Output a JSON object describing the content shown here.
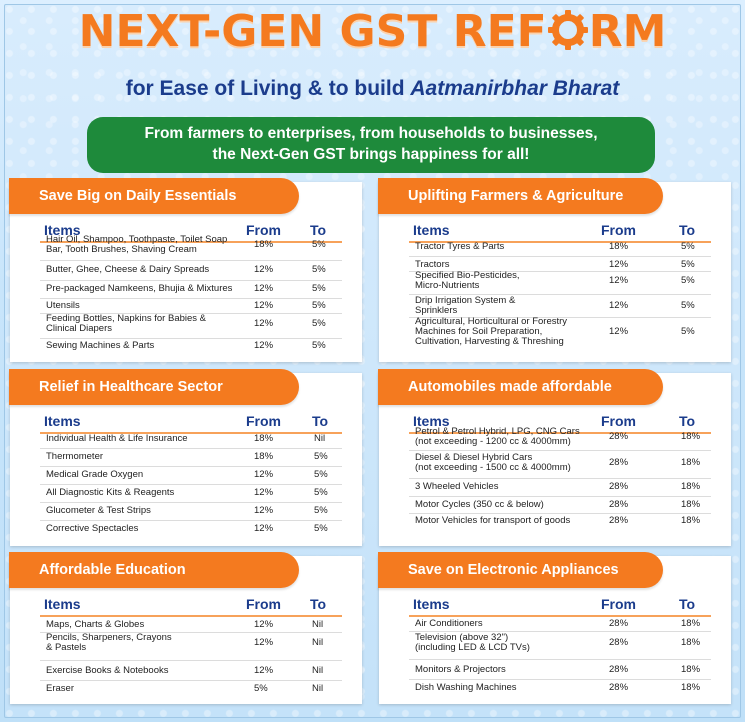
{
  "header": {
    "title_part1": "NEXT-GEN GST REF",
    "title_part2": "RM",
    "gear_icon": "gear-icon",
    "subtitle_main": "for Ease of Living & to build ",
    "subtitle_italic": "Aatmanirbhar Bharat"
  },
  "banner": {
    "line1": "From farmers to enterprises, from households to businesses,",
    "line2": "the Next-Gen GST brings happiness for all!"
  },
  "colors": {
    "orange": "#f47a1f",
    "navy": "#1b3c8c",
    "green": "#1e8a3b"
  },
  "columns": {
    "items": "Items",
    "from": "From",
    "to": "To"
  },
  "sections": [
    {
      "title": "Save Big on Daily Essentials",
      "rows": [
        {
          "item": [
            "Hair Oil, Shampoo, Toothpaste, Toilet Soap",
            "Bar, Tooth Brushes, Shaving Cream"
          ],
          "from": "18%",
          "to": "5%"
        },
        {
          "item": [
            "Butter, Ghee, Cheese & Dairy Spreads"
          ],
          "from": "12%",
          "to": "5%"
        },
        {
          "item": [
            "Pre-packaged Namkeens, Bhujia & Mixtures"
          ],
          "from": "12%",
          "to": "5%"
        },
        {
          "item": [
            "Utensils"
          ],
          "from": "12%",
          "to": "5%"
        },
        {
          "item": [
            "Feeding Bottles, Napkins for Babies &",
            "Clinical Diapers"
          ],
          "from": "12%",
          "to": "5%"
        },
        {
          "item": [
            "Sewing Machines & Parts"
          ],
          "from": "12%",
          "to": "5%"
        }
      ]
    },
    {
      "title": "Uplifting Farmers & Agriculture",
      "rows": [
        {
          "item": [
            "Tractor Tyres & Parts"
          ],
          "from": "18%",
          "to": "5%"
        },
        {
          "item": [
            "Tractors"
          ],
          "from": "12%",
          "to": "5%"
        },
        {
          "item": [
            "Specified Bio-Pesticides,",
            "Micro-Nutrients"
          ],
          "from": "12%",
          "to": "5%"
        },
        {
          "item": [
            "Drip Irrigation System &",
            "Sprinklers"
          ],
          "from": "12%",
          "to": "5%"
        },
        {
          "item": [
            "Agricultural, Horticultural or Forestry",
            "Machines for Soil Preparation,",
            "Cultivation, Harvesting & Threshing"
          ],
          "from": "12%",
          "to": "5%"
        }
      ]
    },
    {
      "title": "Relief in Healthcare Sector",
      "rows": [
        {
          "item": [
            "Individual Health & Life Insurance"
          ],
          "from": "18%",
          "to": "Nil"
        },
        {
          "item": [
            "Thermometer"
          ],
          "from": "18%",
          "to": "5%"
        },
        {
          "item": [
            "Medical Grade Oxygen"
          ],
          "from": "12%",
          "to": "5%"
        },
        {
          "item": [
            "All Diagnostic Kits & Reagents"
          ],
          "from": "12%",
          "to": "5%"
        },
        {
          "item": [
            "Glucometer & Test Strips"
          ],
          "from": "12%",
          "to": "5%"
        },
        {
          "item": [
            "Corrective Spectacles"
          ],
          "from": "12%",
          "to": "5%"
        }
      ]
    },
    {
      "title": "Automobiles made affordable",
      "rows": [
        {
          "item": [
            "Petrol & Petrol Hybrid, LPG, CNG Cars",
            "(not exceeding - 1200 cc & 4000mm)"
          ],
          "from": "28%",
          "to": "18%"
        },
        {
          "item": [
            "Diesel & Diesel Hybrid Cars",
            "(not exceeding - 1500 cc & 4000mm)"
          ],
          "from": "28%",
          "to": "18%"
        },
        {
          "item": [
            "3 Wheeled Vehicles"
          ],
          "from": "28%",
          "to": "18%"
        },
        {
          "item": [
            "Motor Cycles (350 cc & below)"
          ],
          "from": "28%",
          "to": "18%"
        },
        {
          "item": [
            "Motor Vehicles for transport of goods"
          ],
          "from": "28%",
          "to": "18%"
        }
      ]
    },
    {
      "title": "Affordable Education",
      "rows": [
        {
          "item": [
            "Maps, Charts & Globes"
          ],
          "from": "12%",
          "to": "Nil"
        },
        {
          "item": [
            "Pencils, Sharpeners, Crayons",
            "& Pastels"
          ],
          "from": "12%",
          "to": "Nil"
        },
        {
          "item": [
            "Exercise Books & Notebooks"
          ],
          "from": "12%",
          "to": "Nil"
        },
        {
          "item": [
            "Eraser"
          ],
          "from": "5%",
          "to": "Nil"
        }
      ]
    },
    {
      "title": "Save on Electronic Appliances",
      "rows": [
        {
          "item": [
            "Air Conditioners"
          ],
          "from": "28%",
          "to": "18%"
        },
        {
          "item": [
            "Television (above 32\")",
            "(including LED & LCD TVs)"
          ],
          "from": "28%",
          "to": "18%"
        },
        {
          "item": [
            "Monitors & Projectors"
          ],
          "from": "28%",
          "to": "18%"
        },
        {
          "item": [
            "Dish Washing Machines"
          ],
          "from": "28%",
          "to": "18%"
        }
      ]
    }
  ]
}
